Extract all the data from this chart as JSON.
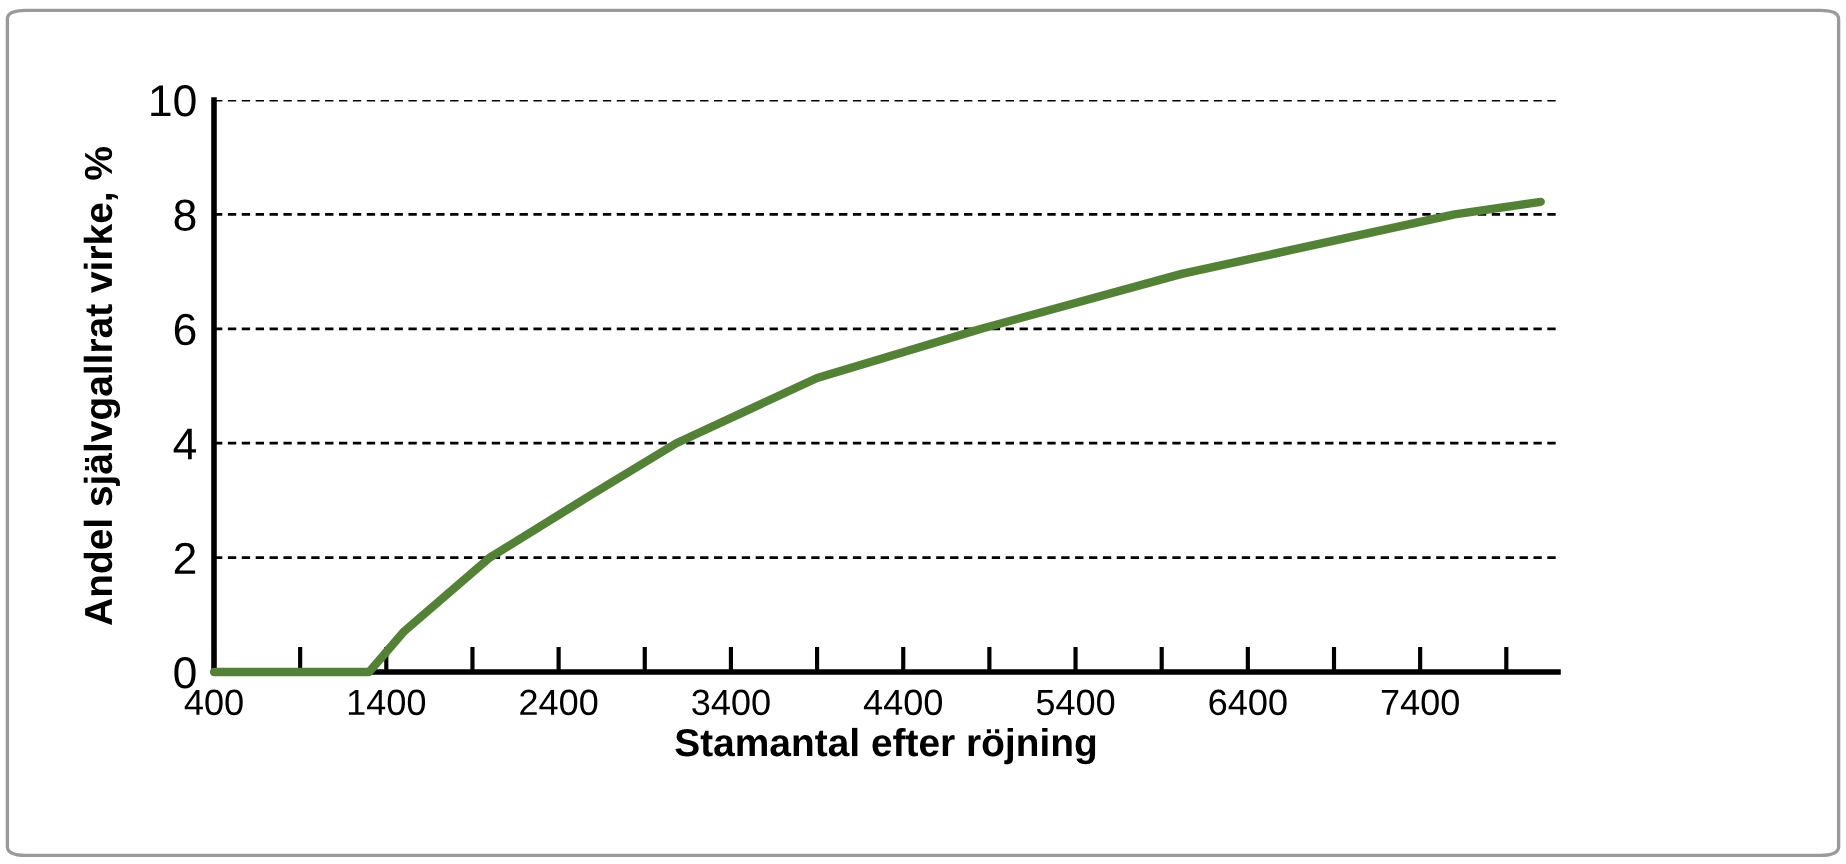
{
  "chart_data": {
    "type": "line",
    "xlabel": "Stamantal efter röjning",
    "ylabel": "Andel självgallrat virke, %",
    "series": [
      {
        "color": "#538135",
        "x": [
          400,
          1300,
          1500,
          2000,
          2580,
          3083,
          3900,
          4853,
          6016,
          7600,
          8100
        ],
        "values": [
          0,
          0,
          0.7,
          2,
          3.08,
          4,
          5.14,
          6,
          6.96,
          8,
          8.22
        ]
      }
    ],
    "xlim": [
      400,
      8200
    ],
    "xticks": [
      400,
      {
        "value": 900,
        "label": null
      },
      1400,
      {
        "value": 1900,
        "label": null
      },
      2400,
      {
        "value": 2900,
        "label": null
      },
      3400,
      {
        "value": 3900,
        "label": null
      },
      4400,
      {
        "value": 4900,
        "label": null
      },
      5400,
      {
        "value": 5900,
        "label": null
      },
      6400,
      {
        "value": 6900,
        "label": null
      },
      7400,
      {
        "value": 7900,
        "label": null
      }
    ],
    "ylim": [
      0,
      10
    ],
    "yticks": [
      0,
      2,
      4,
      6,
      8,
      10
    ],
    "grid": "y",
    "line_style": "solid",
    "marker": "none"
  }
}
